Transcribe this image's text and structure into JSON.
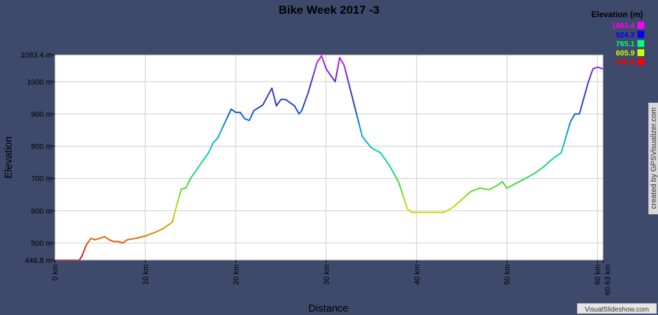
{
  "chart_data": {
    "type": "area",
    "title": "Bike Week 2017 -3",
    "xlabel": "Distance",
    "ylabel": "Elevation",
    "xlim": [
      0,
      60.63
    ],
    "ylim": [
      446.8,
      1083.4
    ],
    "x_ticks": [
      {
        "value": 0,
        "label": "0 km"
      },
      {
        "value": 10,
        "label": "10 km"
      },
      {
        "value": 20,
        "label": "20 km"
      },
      {
        "value": 30,
        "label": "30 km"
      },
      {
        "value": 40,
        "label": "40 km"
      },
      {
        "value": 50,
        "label": "50 km"
      },
      {
        "value": 60,
        "label": "60 km"
      },
      {
        "value": 60.63,
        "label": "60.63 km"
      }
    ],
    "y_ticks": [
      {
        "value": 446.8,
        "label": "446.8 m"
      },
      {
        "value": 500,
        "label": "500 m"
      },
      {
        "value": 600,
        "label": "600 m"
      },
      {
        "value": 700,
        "label": "700 m"
      },
      {
        "value": 800,
        "label": "800 m"
      },
      {
        "value": 900,
        "label": "900 m"
      },
      {
        "value": 1000,
        "label": "1000 m"
      },
      {
        "value": 1083.4,
        "label": "1083.4 m"
      }
    ],
    "grid": true,
    "legend": {
      "title": "Elevation (m)",
      "placement": "top-right",
      "entries": [
        {
          "label": "1083.4",
          "color": "#ff00ff"
        },
        {
          "label": "924.3",
          "color": "#0000ff"
        },
        {
          "label": "765.1",
          "color": "#00ff80"
        },
        {
          "label": "605.9",
          "color": "#ccff00"
        },
        {
          "label": "446.8",
          "color": "#ff0000"
        }
      ]
    },
    "color_stops": [
      {
        "value": 446.8,
        "color": "#d80000"
      },
      {
        "value": 526.4,
        "color": "#e07a00"
      },
      {
        "value": 605.9,
        "color": "#c8e000"
      },
      {
        "value": 685.5,
        "color": "#38d838"
      },
      {
        "value": 765.1,
        "color": "#00d8a0"
      },
      {
        "value": 844.7,
        "color": "#00a0e0"
      },
      {
        "value": 924.3,
        "color": "#1040c8"
      },
      {
        "value": 1003.8,
        "color": "#6020d0"
      },
      {
        "value": 1083.4,
        "color": "#c020e0"
      }
    ],
    "series": [
      {
        "name": "Elevation",
        "x": [
          0,
          2.7,
          3.0,
          3.5,
          4.0,
          4.4,
          5.0,
          5.5,
          6.0,
          6.5,
          7.0,
          7.5,
          8.0,
          9.0,
          10.0,
          11.0,
          12.0,
          12.5,
          13.0,
          13.5,
          14.0,
          14.5,
          15.0,
          16.0,
          17.0,
          17.5,
          18.0,
          19.0,
          19.5,
          20.0,
          20.5,
          21.0,
          21.5,
          22.0,
          23.0,
          24.0,
          24.5,
          25.0,
          25.5,
          26.0,
          26.5,
          27.0,
          27.3,
          28.0,
          29.0,
          29.5,
          30.0,
          30.5,
          31.0,
          31.5,
          32.0,
          33.0,
          34.0,
          35.0,
          36.0,
          37.0,
          38.0,
          39.0,
          39.5,
          40.0,
          41.0,
          42.0,
          43.0,
          44.0,
          45.0,
          46.0,
          47.0,
          48.0,
          49.0,
          49.5,
          50.0,
          51.0,
          52.0,
          53.0,
          54.0,
          55.0,
          56.0,
          57.0,
          57.5,
          58.0,
          58.5,
          59.0,
          59.5,
          60.0,
          60.63
        ],
        "y": [
          446.8,
          446.8,
          460,
          495,
          515,
          510,
          515,
          520,
          510,
          505,
          505,
          500,
          510,
          515,
          522,
          532,
          545,
          555,
          565,
          620,
          668,
          670,
          700,
          740,
          780,
          810,
          825,
          885,
          915,
          905,
          905,
          885,
          880,
          910,
          928,
          980,
          925,
          945,
          945,
          935,
          925,
          900,
          910,
          965,
          1060,
          1080,
          1040,
          1020,
          1000,
          1075,
          1050,
          940,
          830,
          795,
          780,
          740,
          690,
          605,
          595,
          595,
          595,
          595,
          595,
          610,
          635,
          660,
          670,
          665,
          680,
          690,
          670,
          685,
          700,
          715,
          735,
          760,
          780,
          875,
          900,
          900,
          950,
          1000,
          1040,
          1045,
          1040
        ]
      }
    ]
  },
  "side_credit": "created by GPSVisualizer.com",
  "watermark": "VisualSlideshow.com"
}
